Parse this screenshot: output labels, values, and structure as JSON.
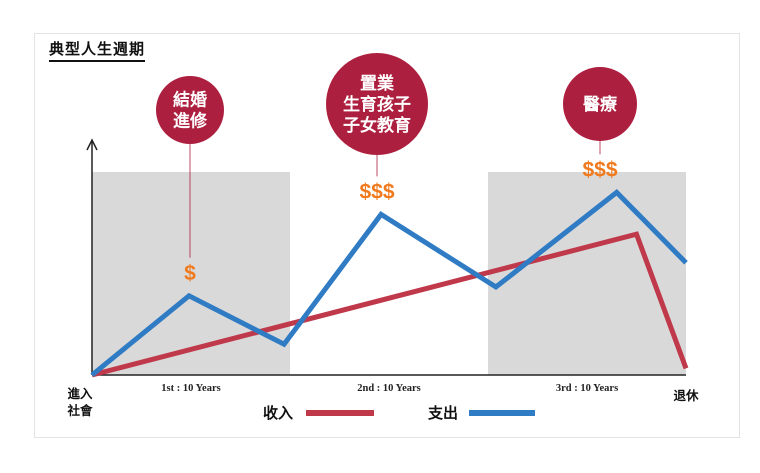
{
  "title": "典型人生週期",
  "colors": {
    "income": "#c0394b",
    "expense": "#2f7bc4",
    "bubble": "#ad1f3f",
    "dollar": "#f07a1e",
    "shade": "#d9d9d9"
  },
  "bubbles": [
    {
      "lines": [
        "結婚",
        "進修"
      ],
      "dollars": "$"
    },
    {
      "lines": [
        "置業",
        "生育孩子",
        "子女教育"
      ],
      "dollars": "$$$"
    },
    {
      "lines": [
        "醫療"
      ],
      "dollars": "$$$"
    }
  ],
  "axis": {
    "start_label": [
      "進入",
      "社會"
    ],
    "end_label": "退休"
  },
  "legend": {
    "income": "收入",
    "expense": "支出"
  },
  "chart_data": {
    "type": "line",
    "title": "典型人生週期",
    "x_periods": [
      "1st : 10 Years",
      "2nd : 10 Years",
      "3rd : 10 Years"
    ],
    "x_range": [
      0,
      30
    ],
    "y_range": [
      0,
      10
    ],
    "grid": false,
    "legend_position": "bottom",
    "series": [
      {
        "name": "收入",
        "x": [
          0,
          27.5,
          30
        ],
        "y": [
          0,
          6.4,
          0.3
        ]
      },
      {
        "name": "支出",
        "x": [
          0,
          4.9,
          9.7,
          14.6,
          20.4,
          26.5,
          30
        ],
        "y": [
          0,
          3.6,
          1.4,
          7.3,
          4.0,
          8.3,
          5.1
        ]
      }
    ],
    "shaded_periods": [
      [
        0,
        10
      ],
      [
        20,
        30
      ]
    ]
  }
}
